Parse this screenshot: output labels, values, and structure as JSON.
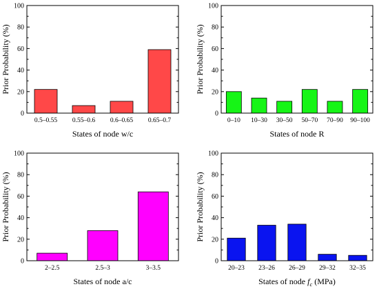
{
  "chart_data": [
    {
      "type": "bar",
      "color": "#ff4848",
      "ylabel": "Prior Probability (%)",
      "xlabel": "States of node w/c",
      "ylim": [
        0,
        100
      ],
      "yticks": [
        "0",
        "20",
        "40",
        "60",
        "80",
        "100"
      ],
      "categories": [
        "0.5–0.55",
        "0.55–0.6",
        "0.6–0.65",
        "0.65–0.7"
      ],
      "values": [
        22,
        7,
        11,
        59
      ]
    },
    {
      "type": "bar",
      "color": "#16f516",
      "ylabel": "Prior Probability (%)",
      "xlabel": "States of node R",
      "ylim": [
        0,
        100
      ],
      "yticks": [
        "0",
        "20",
        "40",
        "60",
        "80",
        "100"
      ],
      "categories": [
        "0–10",
        "10–30",
        "30–50",
        "50–70",
        "70–90",
        "90–100"
      ],
      "values": [
        20,
        14,
        11,
        22,
        11,
        22
      ]
    },
    {
      "type": "bar",
      "color": "#ff00ff",
      "ylabel": "Prior Probability (%)",
      "xlabel": "States of node a/c",
      "ylim": [
        0,
        100
      ],
      "yticks": [
        "0",
        "20",
        "40",
        "60",
        "80",
        "100"
      ],
      "categories": [
        "2–2.5",
        "2.5–3",
        "3–3.5"
      ],
      "values": [
        7,
        28,
        64
      ]
    },
    {
      "type": "bar",
      "color": "#0a14f0",
      "ylabel": "Prior Probability (%)",
      "xlabel": "States of node fc (MPa)",
      "xlabel_parts": [
        "States of node ",
        "f",
        "c",
        " (MPa)"
      ],
      "ylim": [
        0,
        100
      ],
      "yticks": [
        "0",
        "20",
        "40",
        "60",
        "80",
        "100"
      ],
      "categories": [
        "20–23",
        "23–26",
        "26–29",
        "29–32",
        "32–35"
      ],
      "values": [
        21,
        33,
        34,
        6,
        5
      ]
    }
  ]
}
